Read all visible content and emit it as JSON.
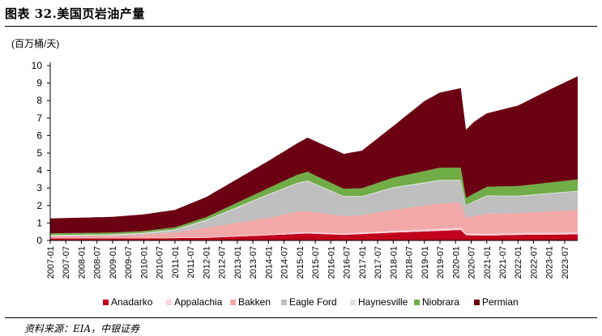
{
  "title": "图表 32.美国页岩油产量",
  "source": "资料来源：EIA，中银证券",
  "chart_data": {
    "type": "area",
    "stacked": true,
    "ylabel": "(百万桶/天)",
    "ylim": [
      0,
      10
    ],
    "yticks": [
      "0",
      "1",
      "2",
      "3",
      "4",
      "5",
      "6",
      "7",
      "8",
      "9",
      "10"
    ],
    "x_range": [
      "2007-01",
      "2023-12"
    ],
    "xticks": [
      "2007-01",
      "2007-07",
      "2008-01",
      "2008-07",
      "2009-01",
      "2009-07",
      "2010-01",
      "2010-07",
      "2011-01",
      "2011-07",
      "2012-01",
      "2012-07",
      "2013-01",
      "2013-07",
      "2014-01",
      "2014-07",
      "2015-01",
      "2015-07",
      "2016-01",
      "2016-07",
      "2017-01",
      "2017-07",
      "2018-01",
      "2018-07",
      "2019-01",
      "2019-07",
      "2020-01",
      "2020-07",
      "2021-01",
      "2021-07",
      "2022-01",
      "2022-07",
      "2023-01",
      "2023-07"
    ],
    "legend_position": "bottom",
    "series": [
      {
        "name": "Anadarko",
        "color": "#c0001a",
        "x": [
          "2007-01",
          "2010-01",
          "2012-01",
          "2014-01",
          "2015-04",
          "2016-06",
          "2018-01",
          "2019-07",
          "2020-03",
          "2020-05",
          "2021-01",
          "2022-01",
          "2023-12"
        ],
        "values": [
          0.12,
          0.12,
          0.15,
          0.3,
          0.4,
          0.32,
          0.45,
          0.55,
          0.6,
          0.3,
          0.28,
          0.32,
          0.35
        ]
      },
      {
        "name": "Appalachia",
        "color": "#fbd0d8",
        "x": [
          "2007-01",
          "2010-01",
          "2012-01",
          "2014-01",
          "2015-04",
          "2016-06",
          "2018-01",
          "2019-07",
          "2020-03",
          "2020-05",
          "2021-01",
          "2022-01",
          "2023-12"
        ],
        "values": [
          0.02,
          0.02,
          0.03,
          0.05,
          0.08,
          0.07,
          0.1,
          0.12,
          0.12,
          0.1,
          0.1,
          0.1,
          0.1
        ]
      },
      {
        "name": "Bakken",
        "color": "#f2a8a8",
        "x": [
          "2007-01",
          "2009-01",
          "2010-01",
          "2011-01",
          "2012-01",
          "2013-01",
          "2014-01",
          "2014-12",
          "2015-04",
          "2016-06",
          "2017-01",
          "2018-01",
          "2019-07",
          "2020-03",
          "2020-05",
          "2021-01",
          "2022-01",
          "2023-12"
        ],
        "values": [
          0.1,
          0.12,
          0.2,
          0.3,
          0.55,
          0.75,
          0.95,
          1.2,
          1.2,
          1.0,
          1.0,
          1.2,
          1.45,
          1.45,
          0.9,
          1.15,
          1.15,
          1.3
        ]
      },
      {
        "name": "Eagle Ford",
        "color": "#bfbfbf",
        "x": [
          "2007-01",
          "2010-01",
          "2011-01",
          "2012-01",
          "2013-01",
          "2014-01",
          "2015-04",
          "2016-06",
          "2017-01",
          "2018-01",
          "2019-07",
          "2020-03",
          "2020-05",
          "2021-01",
          "2022-01",
          "2023-12"
        ],
        "values": [
          0.02,
          0.05,
          0.12,
          0.4,
          0.85,
          1.3,
          1.7,
          1.1,
          1.05,
          1.25,
          1.3,
          1.25,
          0.7,
          1.0,
          0.95,
          1.05
        ]
      },
      {
        "name": "Haynesville",
        "color": "#e0e0e0",
        "x": [
          "2007-01",
          "2012-01",
          "2014-01",
          "2015-04",
          "2016-06",
          "2018-01",
          "2019-07",
          "2020-03",
          "2020-05",
          "2021-01",
          "2023-12"
        ],
        "values": [
          0.05,
          0.05,
          0.05,
          0.05,
          0.04,
          0.04,
          0.04,
          0.04,
          0.03,
          0.04,
          0.04
        ]
      },
      {
        "name": "Niobrara",
        "color": "#70ad47",
        "x": [
          "2007-01",
          "2010-01",
          "2011-01",
          "2012-01",
          "2013-01",
          "2014-01",
          "2015-04",
          "2016-06",
          "2017-01",
          "2018-01",
          "2019-07",
          "2020-03",
          "2020-05",
          "2021-01",
          "2022-01",
          "2023-12"
        ],
        "values": [
          0.1,
          0.1,
          0.12,
          0.15,
          0.25,
          0.35,
          0.5,
          0.42,
          0.45,
          0.55,
          0.7,
          0.7,
          0.4,
          0.5,
          0.55,
          0.65
        ]
      },
      {
        "name": "Permian",
        "color": "#6b0012",
        "x": [
          "2007-01",
          "2009-01",
          "2010-01",
          "2011-01",
          "2012-01",
          "2013-01",
          "2014-01",
          "2014-12",
          "2015-04",
          "2016-06",
          "2017-01",
          "2018-01",
          "2019-01",
          "2019-07",
          "2020-03",
          "2020-05",
          "2020-08",
          "2021-01",
          "2022-01",
          "2023-01",
          "2023-12"
        ],
        "values": [
          0.85,
          0.9,
          0.95,
          1.0,
          1.15,
          1.35,
          1.55,
          1.8,
          1.95,
          2.0,
          2.15,
          2.95,
          4.0,
          4.3,
          4.55,
          3.9,
          4.1,
          4.2,
          4.6,
          5.3,
          5.9
        ]
      }
    ]
  }
}
